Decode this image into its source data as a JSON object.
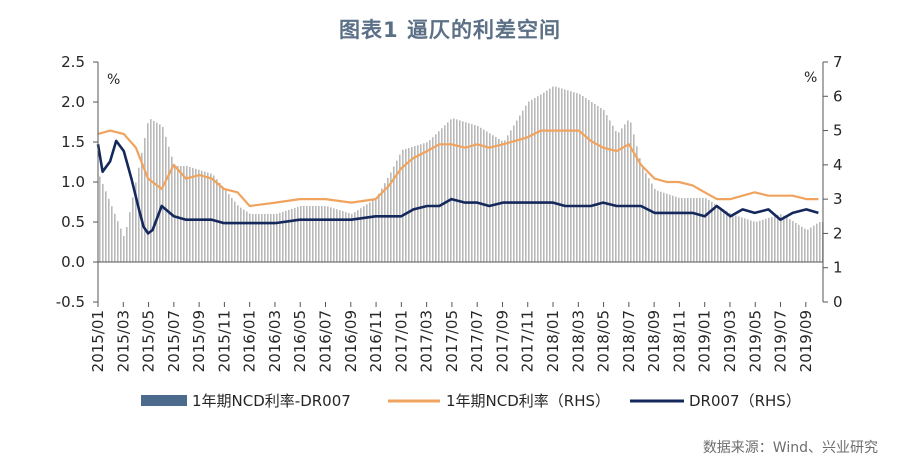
{
  "title": "图表1  逼仄的利差空间",
  "source": "数据来源：Wind、兴业研究",
  "colors": {
    "bars": "#b9b9b9",
    "legend_bar": "#4c6a8c",
    "ncd": "#f0a35e",
    "dr007": "#14285c",
    "axis": "#555555",
    "title": "#5b6f86"
  },
  "chart_data": {
    "type": "bar+line",
    "left_axis": {
      "unit": "%",
      "ylim": [
        -0.5,
        2.5
      ],
      "ticks": [
        "-0.5",
        "0.0",
        "0.5",
        "1.0",
        "1.5",
        "2.0",
        "2.5"
      ]
    },
    "right_axis": {
      "unit": "%",
      "ylim": [
        0,
        7
      ],
      "ticks": [
        "0",
        "1",
        "2",
        "3",
        "4",
        "5",
        "6",
        "7"
      ]
    },
    "x_ticks": [
      "2015/01",
      "2015/03",
      "2015/05",
      "2015/07",
      "2015/09",
      "2015/11",
      "2016/01",
      "2016/03",
      "2016/05",
      "2016/07",
      "2016/09",
      "2016/11",
      "2017/01",
      "2017/03",
      "2017/05",
      "2017/07",
      "2017/09",
      "2017/11",
      "2018/01",
      "2018/03",
      "2018/05",
      "2018/07",
      "2018/09",
      "2018/11",
      "2019/01",
      "2019/03",
      "2019/05",
      "2019/07",
      "2019/09"
    ],
    "legend": [
      {
        "label": "1年期NCD利率-DR007",
        "kind": "bar"
      },
      {
        "label": "1年期NCD利率（RHS）",
        "kind": "line"
      },
      {
        "label": "DR007（RHS）",
        "kind": "line"
      }
    ],
    "series": [
      {
        "name": "1年期NCD利率-DR007",
        "axis": "left",
        "kind": "bar",
        "x": [
          2015.0,
          2015.17,
          2015.33,
          2015.42,
          2015.5,
          2015.58,
          2015.75,
          2015.92,
          2016.0,
          2016.17,
          2016.33,
          2016.5,
          2016.67,
          2016.83,
          2016.92,
          2017.0,
          2017.17,
          2017.33,
          2017.5,
          2017.67,
          2017.83,
          2017.92,
          2018.0,
          2018.17,
          2018.33,
          2018.42,
          2018.5,
          2018.58,
          2018.67,
          2018.83,
          2019.0,
          2019.17,
          2019.33,
          2019.5,
          2019.67,
          2019.75
        ],
        "values": [
          1.1,
          0.3,
          1.8,
          1.7,
          1.2,
          1.2,
          1.1,
          0.7,
          0.6,
          0.6,
          0.7,
          0.7,
          0.6,
          0.8,
          1.1,
          1.4,
          1.5,
          1.8,
          1.7,
          1.5,
          2.0,
          2.1,
          2.2,
          2.1,
          1.9,
          1.6,
          1.8,
          1.2,
          0.9,
          0.8,
          0.8,
          0.6,
          0.5,
          0.6,
          0.4,
          0.5
        ]
      },
      {
        "name": "1年期NCD利率（RHS）",
        "axis": "right",
        "kind": "line",
        "x": [
          2015.0,
          2015.08,
          2015.17,
          2015.25,
          2015.33,
          2015.42,
          2015.5,
          2015.58,
          2015.67,
          2015.75,
          2015.83,
          2015.92,
          2016.0,
          2016.17,
          2016.33,
          2016.5,
          2016.67,
          2016.83,
          2016.92,
          2017.0,
          2017.08,
          2017.17,
          2017.25,
          2017.33,
          2017.42,
          2017.5,
          2017.58,
          2017.67,
          2017.75,
          2017.83,
          2017.92,
          2018.0,
          2018.08,
          2018.17,
          2018.25,
          2018.33,
          2018.42,
          2018.5,
          2018.58,
          2018.67,
          2018.75,
          2018.83,
          2018.92,
          2019.0,
          2019.08,
          2019.17,
          2019.25,
          2019.33,
          2019.42,
          2019.5,
          2019.58,
          2019.67,
          2019.75
        ],
        "values": [
          4.9,
          5.0,
          4.9,
          4.5,
          3.6,
          3.3,
          4.0,
          3.6,
          3.7,
          3.6,
          3.3,
          3.2,
          2.8,
          2.9,
          3.0,
          3.0,
          2.9,
          3.0,
          3.4,
          3.9,
          4.2,
          4.4,
          4.6,
          4.6,
          4.5,
          4.6,
          4.5,
          4.6,
          4.7,
          4.8,
          5.0,
          5.0,
          5.0,
          5.0,
          4.7,
          4.5,
          4.4,
          4.6,
          4.0,
          3.6,
          3.5,
          3.5,
          3.4,
          3.2,
          3.0,
          3.0,
          3.1,
          3.2,
          3.1,
          3.1,
          3.1,
          3.0,
          3.0
        ]
      },
      {
        "name": "DR007（RHS）",
        "axis": "right",
        "kind": "line",
        "x": [
          2015.0,
          2015.03,
          2015.08,
          2015.12,
          2015.17,
          2015.22,
          2015.27,
          2015.3,
          2015.33,
          2015.36,
          2015.42,
          2015.5,
          2015.58,
          2015.67,
          2015.75,
          2015.83,
          2015.92,
          2016.0,
          2016.17,
          2016.33,
          2016.5,
          2016.67,
          2016.83,
          2016.92,
          2017.0,
          2017.08,
          2017.17,
          2017.25,
          2017.33,
          2017.42,
          2017.5,
          2017.58,
          2017.67,
          2017.75,
          2017.83,
          2017.92,
          2018.0,
          2018.08,
          2018.17,
          2018.25,
          2018.33,
          2018.42,
          2018.5,
          2018.58,
          2018.67,
          2018.75,
          2018.83,
          2018.92,
          2019.0,
          2019.08,
          2019.17,
          2019.25,
          2019.33,
          2019.42,
          2019.5,
          2019.58,
          2019.67,
          2019.75
        ],
        "values": [
          4.6,
          3.8,
          4.1,
          4.7,
          4.4,
          3.6,
          2.7,
          2.2,
          2.0,
          2.1,
          2.8,
          2.5,
          2.4,
          2.4,
          2.4,
          2.3,
          2.3,
          2.3,
          2.3,
          2.4,
          2.4,
          2.4,
          2.5,
          2.5,
          2.5,
          2.7,
          2.8,
          2.8,
          3.0,
          2.9,
          2.9,
          2.8,
          2.9,
          2.9,
          2.9,
          2.9,
          2.9,
          2.8,
          2.8,
          2.8,
          2.9,
          2.8,
          2.8,
          2.8,
          2.6,
          2.6,
          2.6,
          2.6,
          2.5,
          2.8,
          2.5,
          2.7,
          2.6,
          2.7,
          2.4,
          2.6,
          2.7,
          2.6
        ]
      }
    ]
  }
}
